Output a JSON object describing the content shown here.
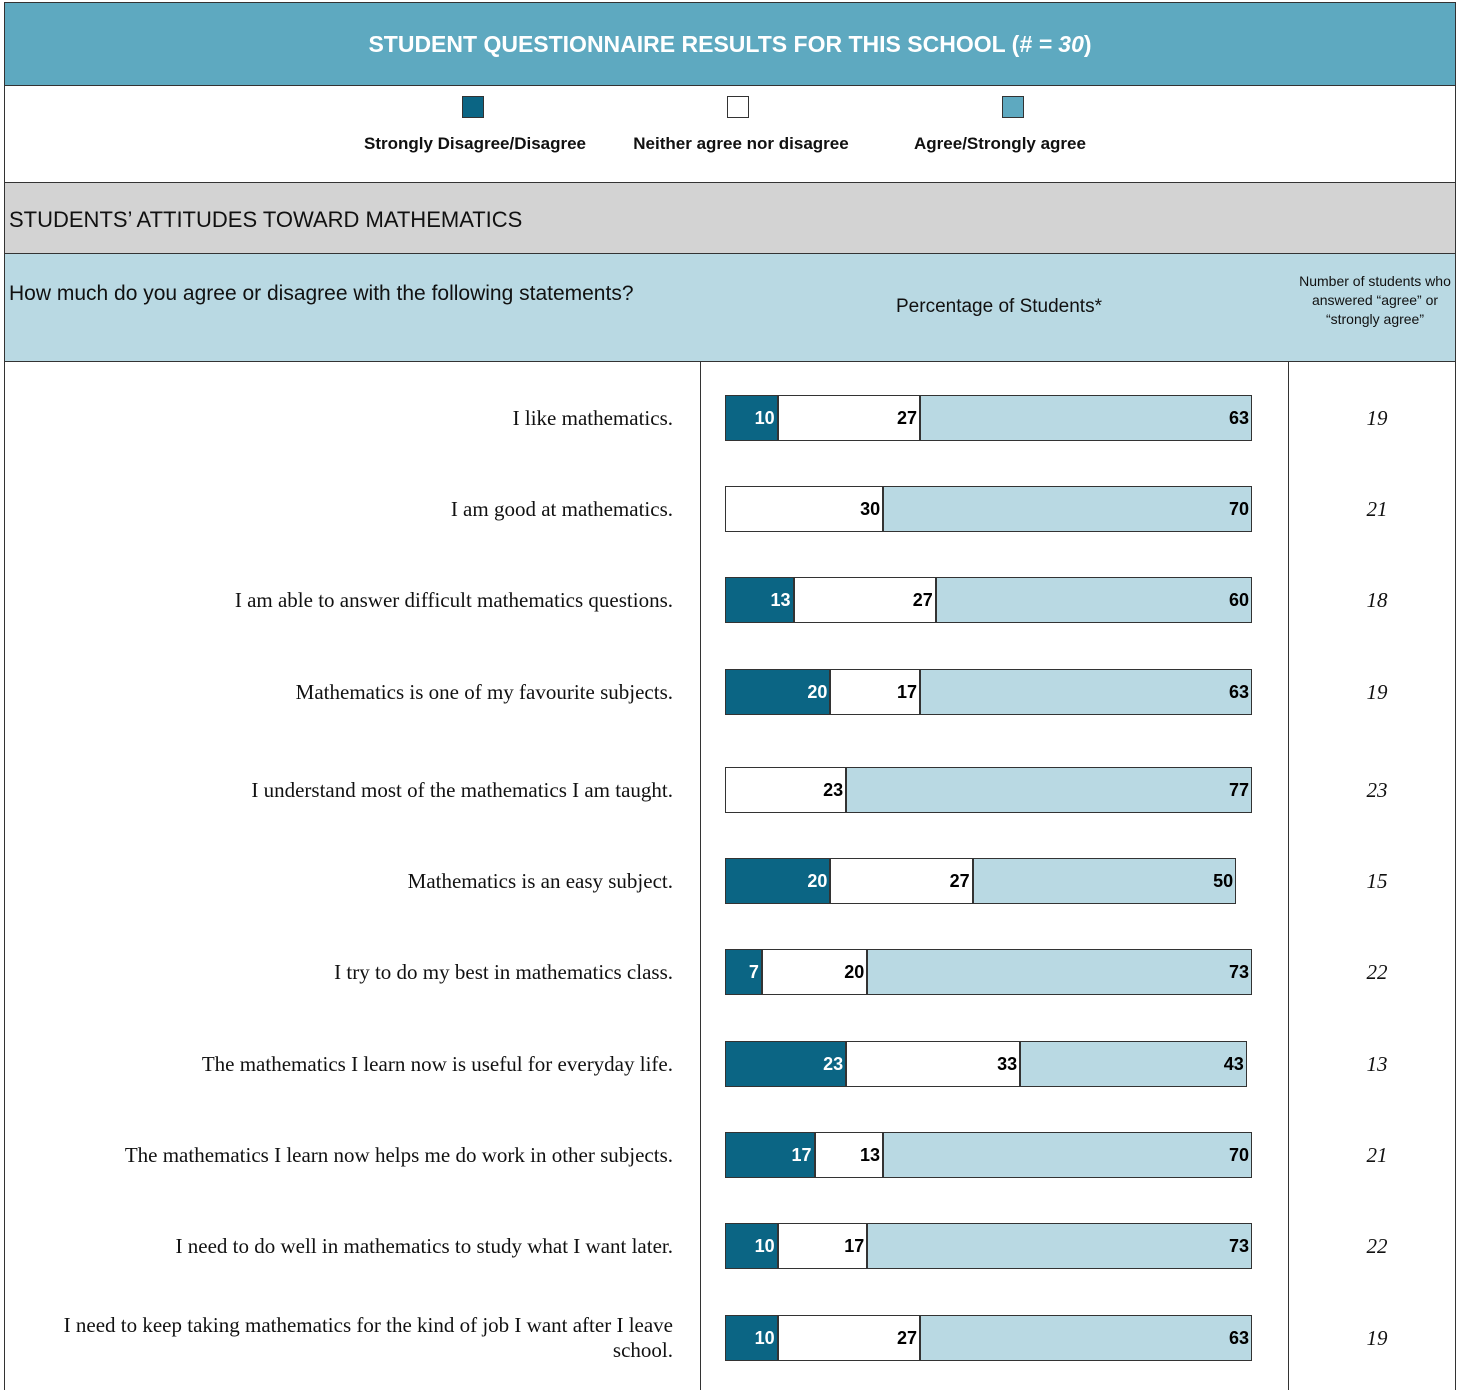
{
  "header": {
    "title_prefix": "STUDENT QUESTIONNAIRE RESULTS FOR THIS SCHOOL (",
    "title_hash": "# = ",
    "title_n": "30",
    "title_suffix": ")"
  },
  "legend": [
    {
      "label": "Strongly Disagree/Disagree",
      "color": "#0b6584"
    },
    {
      "label": "Neither agree nor disagree",
      "color": "#ffffff"
    },
    {
      "label": "Agree/Strongly agree",
      "color": "#5ea9c0"
    }
  ],
  "section": {
    "title": "STUDENTS’ ATTITUDES TOWARD MATHEMATICS"
  },
  "columns": {
    "question": "How much do you agree or disagree with the following statements?",
    "percentage": "Percentage of Students*",
    "count": "Number of students who answered “agree” or “strongly agree”"
  },
  "colors": {
    "disagree": "#0b6584",
    "neutral": "#ffffff",
    "agree": "#b9d9e3"
  },
  "chart_data": {
    "type": "bar",
    "orientation": "horizontal-stacked",
    "categories": [
      "I like mathematics.",
      "I am good at mathematics.",
      "I am able to answer difficult mathematics questions.",
      "Mathematics is one of my favourite subjects.",
      "I understand most of the mathematics I am taught.",
      "Mathematics is an easy subject.",
      "I try to do my best in mathematics class.",
      "The mathematics I learn now is useful for everyday life.",
      "The mathematics I learn now helps me do work in other subjects.",
      "I need to do well in mathematics to study what I want later.",
      "I need to keep taking mathematics for the kind of job I want after I leave school."
    ],
    "series": [
      {
        "name": "Strongly Disagree/Disagree",
        "values": [
          10,
          null,
          13,
          20,
          null,
          20,
          7,
          23,
          17,
          10,
          10
        ]
      },
      {
        "name": "Neither agree nor disagree",
        "values": [
          27,
          30,
          27,
          17,
          23,
          27,
          20,
          33,
          13,
          17,
          27
        ]
      },
      {
        "name": "Agree/Strongly agree",
        "values": [
          63,
          70,
          60,
          63,
          77,
          50,
          73,
          43,
          70,
          73,
          63
        ]
      }
    ],
    "counts": [
      "19",
      "21",
      "18",
      "19",
      "23",
      "15",
      "22",
      "13",
      "21",
      "22",
      "19"
    ]
  }
}
